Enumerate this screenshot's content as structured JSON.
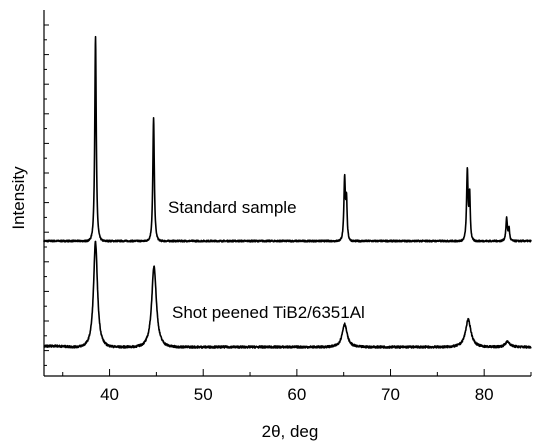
{
  "chart_data": {
    "type": "line",
    "title": "",
    "xlabel": "2θ, deg",
    "ylabel": "Intensity",
    "xlim": [
      33,
      85
    ],
    "xticks": [
      40,
      50,
      60,
      70,
      80
    ],
    "y_tick_labels_shown": false,
    "grid": false,
    "legend": "none",
    "series": [
      {
        "name": "Standard sample",
        "baseline": 0,
        "noise": 0.004,
        "peaks": [
          {
            "x": 38.5,
            "height": 1.0,
            "width": 0.12
          },
          {
            "x": 44.7,
            "height": 0.6,
            "width": 0.12
          },
          {
            "x": 65.1,
            "height": 0.3,
            "width": 0.12
          },
          {
            "x": 78.2,
            "height": 0.34,
            "width": 0.12
          },
          {
            "x": 82.4,
            "height": 0.11,
            "width": 0.12
          }
        ],
        "doublets": [
          {
            "x": 65.3,
            "height": 0.19,
            "width": 0.1
          },
          {
            "x": 78.45,
            "height": 0.22,
            "width": 0.1
          },
          {
            "x": 82.65,
            "height": 0.06,
            "width": 0.1
          }
        ]
      },
      {
        "name": "Shot peened TiB2/6351Al",
        "baseline": 0,
        "noise": 0.01,
        "peaks": [
          {
            "x": 38.5,
            "height": 1.0,
            "width": 0.32
          },
          {
            "x": 44.75,
            "height": 0.77,
            "width": 0.38
          },
          {
            "x": 65.1,
            "height": 0.22,
            "width": 0.4
          },
          {
            "x": 78.3,
            "height": 0.26,
            "width": 0.45
          },
          {
            "x": 82.5,
            "height": 0.05,
            "width": 0.4
          }
        ],
        "doublets": []
      }
    ]
  }
}
